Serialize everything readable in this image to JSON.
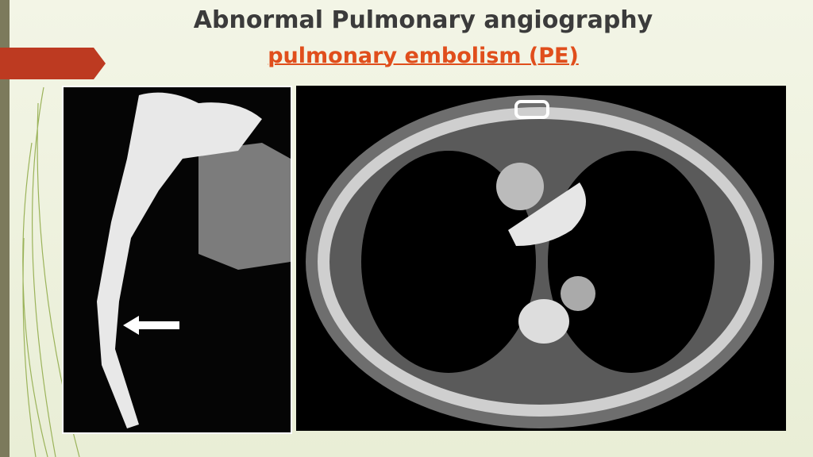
{
  "header": {
    "title": "Abnormal Pulmonary angiography",
    "subtitle": "pulmonary embolism (PE)"
  }
}
